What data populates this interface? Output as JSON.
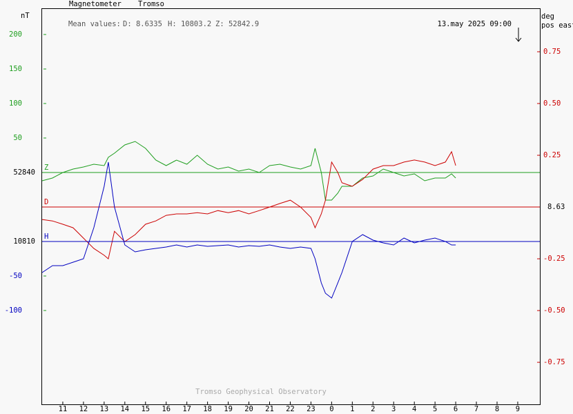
{
  "chart_data": {
    "type": "line",
    "title": "Magnetometer",
    "station": "Tromso",
    "y_label": "nT",
    "y2_label": "deg",
    "y2_sublabel": "pos east",
    "timestamp": "13.may 2025 09:00",
    "mean_label": "Mean values:",
    "means": [
      "D: 8.6335",
      "H: 10803.2",
      "Z: 52842.9"
    ],
    "footer": "Tromso Geophysical Observatory",
    "x": [
      10,
      10.5,
      11,
      11.5,
      12,
      12.5,
      13,
      13.2,
      13.5,
      14,
      14.5,
      15,
      15.5,
      16,
      16.5,
      17,
      17.5,
      18,
      18.5,
      19,
      19.5,
      20,
      20.5,
      21,
      21.5,
      22,
      22.5,
      23,
      23.2,
      23.5,
      23.7,
      24,
      24.3,
      24.5,
      25,
      25.5,
      26,
      26.5,
      27,
      27.5,
      28,
      28.5,
      29,
      29.5,
      29.8,
      30
    ],
    "xlim": [
      10,
      34.07
    ],
    "xticks": [
      11,
      12,
      13,
      14,
      15,
      16,
      17,
      18,
      19,
      20,
      21,
      22,
      23,
      {
        "value": 24,
        "label": "0"
      },
      {
        "value": 25,
        "label": "1"
      },
      {
        "value": 26,
        "label": "2"
      },
      {
        "value": 27,
        "label": "3"
      },
      {
        "value": 28,
        "label": "4"
      },
      {
        "value": 29,
        "label": "5"
      },
      {
        "value": 30,
        "label": "6"
      },
      {
        "value": 31,
        "label": "7"
      },
      {
        "value": 32,
        "label": "8"
      },
      {
        "value": 33,
        "label": "9"
      }
    ],
    "ylim": [
      -336,
      238
    ],
    "yticks": [
      200,
      150,
      100,
      50,
      {
        "value": -150,
        "label": "-50"
      },
      {
        "value": -200,
        "label": "-100"
      }
    ],
    "y2lim": [
      -0.953,
      0.96
    ],
    "y2ticks": [
      0.75,
      {
        "value": 0.5,
        "label": "0.50"
      },
      0.25,
      -0.25,
      {
        "value": -0.5,
        "label": "-0.50"
      },
      -0.75
    ],
    "series": [
      {
        "name": "Z",
        "color": "#1e9e1e",
        "baseline": 0,
        "baseline_label": "52840",
        "values": [
          -12,
          -8,
          0,
          5,
          8,
          12,
          10,
          22,
          28,
          40,
          45,
          35,
          18,
          10,
          18,
          12,
          25,
          12,
          5,
          8,
          2,
          5,
          0,
          10,
          12,
          8,
          5,
          10,
          35,
          0,
          -40,
          -40,
          -30,
          -20,
          -20,
          -8,
          -5,
          5,
          0,
          -5,
          -2,
          -12,
          -8,
          -8,
          -2,
          -8
        ]
      },
      {
        "name": "D",
        "color": "#cc0000",
        "axis": "y2",
        "baseline": 0,
        "baseline_label": "8.63",
        "values": [
          -0.06,
          -0.067,
          -0.083,
          -0.1,
          -0.15,
          -0.2,
          -0.233,
          -0.25,
          -0.117,
          -0.167,
          -0.133,
          -0.083,
          -0.067,
          -0.04,
          -0.033,
          -0.033,
          -0.027,
          -0.033,
          -0.017,
          -0.027,
          -0.017,
          -0.033,
          -0.017,
          0,
          0.017,
          0.033,
          0,
          -0.05,
          -0.1,
          -0.033,
          0.033,
          0.217,
          0.167,
          0.117,
          0.1,
          0.133,
          0.183,
          0.2,
          0.2,
          0.217,
          0.227,
          0.217,
          0.2,
          0.217,
          0.267,
          0.2
        ]
      },
      {
        "name": "H",
        "color": "#0000c0",
        "baseline": -100,
        "baseline_label": "10810",
        "values": [
          -145,
          -135,
          -135,
          -130,
          -125,
          -80,
          -20,
          15,
          -50,
          -105,
          -115,
          -112,
          -110,
          -108,
          -105,
          -108,
          -105,
          -107,
          -106,
          -105,
          -108,
          -106,
          -107,
          -105,
          -108,
          -110,
          -108,
          -110,
          -125,
          -160,
          -175,
          -182,
          -160,
          -145,
          -100,
          -90,
          -98,
          -102,
          -105,
          -95,
          -102,
          -98,
          -95,
          -100,
          -105,
          -105
        ]
      }
    ]
  }
}
